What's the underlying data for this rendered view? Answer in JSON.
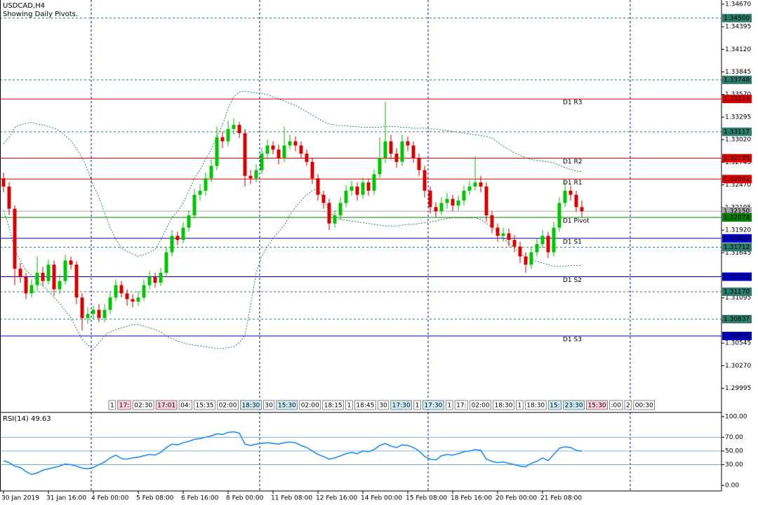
{
  "chart_data": [
    {
      "type": "candlestick",
      "title": "USDCAD,H4",
      "subtitle": "Showing Daily Pivots.",
      "categories": [
        "30 Jan 2019",
        null,
        null,
        null,
        null,
        null,
        null,
        null,
        "31 Jan 16:00",
        null,
        null,
        null,
        null,
        null,
        null,
        null,
        "4 Feb 00:00",
        null,
        null,
        null,
        null,
        null,
        null,
        null,
        "5 Feb 08:00",
        null,
        null,
        null,
        null,
        null,
        null,
        null,
        "6 Feb 16:00",
        null,
        null,
        null,
        null,
        null,
        null,
        null,
        "8 Feb 00:00",
        null,
        null,
        null,
        null,
        null,
        null,
        null,
        "11 Feb 08:00",
        null,
        null,
        null,
        null,
        null,
        null,
        null,
        "12 Feb 16:00",
        null,
        null,
        null,
        null,
        null,
        null,
        null,
        "14 Feb 00:00",
        null,
        null,
        null,
        null,
        null,
        null,
        null,
        "15 Feb 08:00",
        null,
        null,
        null,
        null,
        null,
        null,
        null,
        "18 Feb 16:00",
        null,
        null,
        null,
        null,
        null,
        null,
        null,
        "20 Feb 00:00",
        null,
        null,
        null,
        null,
        null,
        null,
        null,
        "21 Feb 08:00",
        null,
        null,
        null,
        null,
        null,
        null,
        null
      ],
      "open": [
        1.3255,
        1.3245,
        1.3218,
        1.3145,
        1.3135,
        1.3115,
        1.3125,
        1.314,
        1.313,
        1.315,
        1.312,
        1.313,
        1.3155,
        1.315,
        1.311,
        1.3085,
        1.309,
        1.3095,
        1.3085,
        1.3095,
        1.311,
        1.3125,
        1.3115,
        1.3108,
        1.3105,
        1.311,
        1.3125,
        1.3135,
        1.3128,
        1.314,
        1.3165,
        1.3185,
        1.318,
        1.3195,
        1.321,
        1.3235,
        1.324,
        1.3255,
        1.327,
        1.3305,
        1.33,
        1.3315,
        1.332,
        1.331,
        1.3258,
        1.3255,
        1.3265,
        1.3285,
        1.3295,
        1.329,
        1.328,
        1.3295,
        1.33,
        1.3295,
        1.3285,
        1.3275,
        1.3255,
        1.3235,
        1.3225,
        1.32,
        1.321,
        1.3225,
        1.324,
        1.3245,
        1.3235,
        1.325,
        1.324,
        1.326,
        1.328,
        1.33,
        1.3285,
        1.3275,
        1.33,
        1.3295,
        1.328,
        1.3265,
        1.324,
        1.322,
        1.3215,
        1.3225,
        1.323,
        1.3222,
        1.3228,
        1.324,
        1.3245,
        1.325,
        1.3245,
        1.321,
        1.3195,
        1.3185,
        1.3188,
        1.318,
        1.3172,
        1.316,
        1.315,
        1.3165,
        1.3175,
        1.3185,
        1.3165,
        1.3195,
        1.3225,
        1.324,
        1.3235,
        1.322
      ],
      "high": [
        1.3262,
        1.325,
        1.3222,
        1.3152,
        1.314,
        1.3132,
        1.316,
        1.3147,
        1.3156,
        1.3155,
        1.3138,
        1.3162,
        1.316,
        1.3154,
        1.3115,
        1.3098,
        1.31,
        1.3102,
        1.3102,
        1.3116,
        1.3132,
        1.313,
        1.312,
        1.3114,
        1.3118,
        1.3132,
        1.3142,
        1.314,
        1.3146,
        1.3172,
        1.3192,
        1.319,
        1.3202,
        1.3216,
        1.3242,
        1.3248,
        1.3262,
        1.3278,
        1.3318,
        1.3312,
        1.3325,
        1.3328,
        1.3324,
        1.3315,
        1.3265,
        1.3272,
        1.3292,
        1.3302,
        1.33,
        1.3296,
        1.3318,
        1.3308,
        1.3306,
        1.33,
        1.329,
        1.328,
        1.326,
        1.324,
        1.323,
        1.3216,
        1.3232,
        1.3247,
        1.3252,
        1.325,
        1.3256,
        1.3255,
        1.3266,
        1.3305,
        1.3348,
        1.3308,
        1.3292,
        1.3308,
        1.3306,
        1.33,
        1.3285,
        1.327,
        1.3245,
        1.3226,
        1.3232,
        1.3237,
        1.3235,
        1.3234,
        1.3246,
        1.3252,
        1.3282,
        1.3258,
        1.325,
        1.3215,
        1.32,
        1.3195,
        1.3194,
        1.3186,
        1.3178,
        1.3165,
        1.3172,
        1.3182,
        1.3192,
        1.319,
        1.3202,
        1.3232,
        1.3252,
        1.3246,
        1.324,
        1.3228
      ],
      "low": [
        1.3238,
        1.321,
        1.3125,
        1.3128,
        1.3108,
        1.311,
        1.3118,
        1.3124,
        1.3126,
        1.3112,
        1.3114,
        1.3126,
        1.3144,
        1.3102,
        1.307,
        1.3078,
        1.3084,
        1.308,
        1.308,
        1.309,
        1.3106,
        1.311,
        1.31,
        1.3098,
        1.31,
        1.3106,
        1.312,
        1.3122,
        1.3124,
        1.3136,
        1.316,
        1.3174,
        1.3176,
        1.319,
        1.3206,
        1.3228,
        1.3234,
        1.325,
        1.3265,
        1.3292,
        1.3294,
        1.3308,
        1.3304,
        1.3245,
        1.3248,
        1.325,
        1.326,
        1.3278,
        1.3284,
        1.3272,
        1.3275,
        1.329,
        1.3288,
        1.328,
        1.327,
        1.3248,
        1.3228,
        1.3218,
        1.3192,
        1.3195,
        1.3205,
        1.322,
        1.3234,
        1.3228,
        1.323,
        1.3234,
        1.3235,
        1.3255,
        1.3274,
        1.3278,
        1.3268,
        1.327,
        1.3288,
        1.3274,
        1.3258,
        1.3232,
        1.3212,
        1.3208,
        1.321,
        1.3218,
        1.3215,
        1.3216,
        1.3222,
        1.3235,
        1.324,
        1.3238,
        1.3202,
        1.3188,
        1.3178,
        1.3178,
        1.3172,
        1.3165,
        1.3152,
        1.314,
        1.3145,
        1.316,
        1.317,
        1.3158,
        1.316,
        1.319,
        1.322,
        1.3228,
        1.3214,
        1.3208
      ],
      "close": [
        1.3245,
        1.3218,
        1.3145,
        1.3135,
        1.3115,
        1.3125,
        1.314,
        1.313,
        1.315,
        1.312,
        1.313,
        1.3155,
        1.315,
        1.311,
        1.3085,
        1.309,
        1.3095,
        1.3085,
        1.3095,
        1.311,
        1.3125,
        1.3115,
        1.3108,
        1.3105,
        1.311,
        1.3125,
        1.3135,
        1.3128,
        1.314,
        1.3165,
        1.3185,
        1.318,
        1.3195,
        1.321,
        1.3235,
        1.324,
        1.3255,
        1.327,
        1.3305,
        1.33,
        1.3315,
        1.332,
        1.331,
        1.3258,
        1.3255,
        1.3265,
        1.3285,
        1.3295,
        1.329,
        1.328,
        1.3295,
        1.33,
        1.3295,
        1.3285,
        1.3275,
        1.3255,
        1.3235,
        1.3225,
        1.32,
        1.321,
        1.3225,
        1.324,
        1.3245,
        1.3235,
        1.325,
        1.324,
        1.326,
        1.328,
        1.33,
        1.3285,
        1.3275,
        1.33,
        1.3295,
        1.328,
        1.3265,
        1.324,
        1.322,
        1.3215,
        1.3225,
        1.323,
        1.3222,
        1.3228,
        1.324,
        1.3245,
        1.325,
        1.3245,
        1.321,
        1.3195,
        1.3185,
        1.3188,
        1.318,
        1.3172,
        1.316,
        1.315,
        1.3165,
        1.3175,
        1.3185,
        1.3165,
        1.3195,
        1.3225,
        1.324,
        1.3235,
        1.322,
        1.3215
      ],
      "up_color": "#00c800",
      "down_color": "#e00000",
      "upper_band": [
        1.3297,
        1.3305,
        1.3317,
        1.332,
        1.3322,
        1.3323,
        1.3321,
        1.332,
        1.3318,
        1.3316,
        1.3313,
        1.3307,
        1.3301,
        1.3291,
        1.328,
        1.3265,
        1.3246,
        1.3232,
        1.3213,
        1.3195,
        1.3181,
        1.317,
        1.3166,
        1.3163,
        1.316,
        1.3162,
        1.3165,
        1.3168,
        1.318,
        1.3194,
        1.3207,
        1.3215,
        1.3225,
        1.324,
        1.3255,
        1.3265,
        1.3278,
        1.329,
        1.3305,
        1.332,
        1.334,
        1.3354,
        1.336,
        1.3361,
        1.336,
        1.3359,
        1.3358,
        1.3357,
        1.3354,
        1.3352,
        1.3349,
        1.3346,
        1.3344,
        1.334,
        1.3336,
        1.3332,
        1.3328,
        1.3324,
        1.3321,
        1.332,
        1.3319,
        1.3319,
        1.3318,
        1.3318,
        1.3317,
        1.3317,
        1.3317,
        1.3317,
        1.3318,
        1.3318,
        1.3318,
        1.3317,
        1.3317,
        1.3316,
        1.3316,
        1.3316,
        1.3315,
        1.3315,
        1.3314,
        1.3313,
        1.3312,
        1.3311,
        1.331,
        1.3309,
        1.3308,
        1.3307,
        1.3306,
        1.3304,
        1.3299,
        1.3294,
        1.329,
        1.3286,
        1.3283,
        1.328,
        1.3278,
        1.3277,
        1.3276,
        1.3275,
        1.3274,
        1.3271,
        1.3268,
        1.3266,
        1.3264,
        1.3263
      ],
      "lower_band": [
        1.3216,
        1.3195,
        1.3168,
        1.3155,
        1.3143,
        1.3137,
        1.313,
        1.3124,
        1.3118,
        1.311,
        1.3103,
        1.3094,
        1.3085,
        1.3072,
        1.3059,
        1.3052,
        1.3047,
        1.3055,
        1.3064,
        1.3068,
        1.3071,
        1.3073,
        1.3075,
        1.3077,
        1.3077,
        1.3075,
        1.3073,
        1.3071,
        1.3068,
        1.3063,
        1.306,
        1.3057,
        1.3055,
        1.3053,
        1.3052,
        1.3051,
        1.305,
        1.3049,
        1.3048,
        1.3048,
        1.3049,
        1.305,
        1.3055,
        1.3064,
        1.31,
        1.314,
        1.316,
        1.3172,
        1.3182,
        1.319,
        1.3198,
        1.321,
        1.322,
        1.3228,
        1.3235,
        1.324,
        1.3243,
        1.323,
        1.3215,
        1.3207,
        1.3205,
        1.3204,
        1.3203,
        1.3202,
        1.3201,
        1.32,
        1.3199,
        1.3198,
        1.3197,
        1.3197,
        1.3197,
        1.3198,
        1.3199,
        1.3199,
        1.32,
        1.3201,
        1.3202,
        1.3203,
        1.3205,
        1.3206,
        1.3207,
        1.3207,
        1.3207,
        1.3207,
        1.3207,
        1.3205,
        1.32,
        1.3196,
        1.3189,
        1.3182,
        1.3176,
        1.317,
        1.3164,
        1.3159,
        1.3156,
        1.3154,
        1.3152,
        1.315,
        1.3148,
        1.3148,
        1.3148,
        1.3149,
        1.3149,
        1.3149
      ],
      "band_color": "#2e8b57",
      "ylim": [
        1.2971,
        1.3472
      ],
      "yticks": [
        {
          "value": 1.3467,
          "label": "1.34670"
        },
        {
          "value": 1.34395,
          "label": "1.34395"
        },
        {
          "value": 1.3412,
          "label": "1.34120"
        },
        {
          "value": 1.33845,
          "label": "1.33845"
        },
        {
          "value": 1.3357,
          "label": "1.33570"
        },
        {
          "value": 1.33295,
          "label": "1.33295"
        },
        {
          "value": 1.3302,
          "label": "1.33020"
        },
        {
          "value": 1.32745,
          "label": "1.32745"
        },
        {
          "value": 1.3247,
          "label": "1.32470"
        },
        {
          "value": 1.32195,
          "label": "1.32195"
        },
        {
          "value": 1.3192,
          "label": "1.31920"
        },
        {
          "value": 1.31645,
          "label": "1.31645"
        },
        {
          "value": 1.3137,
          "label": "1.31370"
        },
        {
          "value": 1.31095,
          "label": "1.31095"
        },
        {
          "value": 1.3082,
          "label": "1.30820"
        },
        {
          "value": 1.30545,
          "label": "1.30545"
        },
        {
          "value": 1.3027,
          "label": "1.30270"
        },
        {
          "value": 1.29995,
          "label": "1.29995"
        }
      ],
      "levels": [
        {
          "value": 1.345,
          "label": "1.34500",
          "color": "#2e7d6b",
          "dash": true
        },
        {
          "value": 1.33748,
          "label": "1.33748",
          "color": "#2e7d6b",
          "dash": true
        },
        {
          "value": 1.33516,
          "label": "1.33516",
          "name": "D1 R3",
          "color": "#e00000",
          "dash": false
        },
        {
          "value": 1.33117,
          "label": "1.33117",
          "color": "#2e7d6b",
          "dash": true
        },
        {
          "value": 1.32795,
          "label": "1.32795",
          "name": "D1 R2",
          "color": "#e00000",
          "dash": false
        },
        {
          "value": 1.32541,
          "label": "1.32541",
          "name": "D1 R1",
          "color": "#e00000",
          "dash": false
        },
        {
          "value": 1.3215,
          "label": "1.32150",
          "color": "#a8a8a8",
          "dash": false
        },
        {
          "value": 1.32074,
          "label": "1.32074",
          "name": "D1 Pivot",
          "color": "#008000",
          "dash": false
        },
        {
          "value": 1.3182,
          "label": "1.31820",
          "name": "D1 S1",
          "color": "#0000c8",
          "dash": false
        },
        {
          "value": 1.31712,
          "label": "1.31712",
          "color": "#2e7d6b",
          "dash": true
        },
        {
          "value": 1.31353,
          "label": "1.31353",
          "name": "D1 S2",
          "color": "#0000c8",
          "dash": false
        },
        {
          "value": 1.3117,
          "label": "1.31170",
          "color": "#2e7d6b",
          "dash": true
        },
        {
          "value": 1.30837,
          "label": "1.30837",
          "color": "#2e7d6b",
          "dash": true
        },
        {
          "value": 1.30632,
          "label": "1.30632",
          "name": "D1 S3",
          "color": "#0000c8",
          "dash": false
        }
      ],
      "sessions": [
        {
          "label": "1",
          "bg": "#ffffff"
        },
        {
          "label": "17:",
          "bg": "#ffd0dc"
        },
        {
          "label": "02:30",
          "bg": "#ffffff"
        },
        {
          "label": "17:01",
          "bg": "#ffd0dc"
        },
        {
          "label": "04:",
          "bg": "#ffffff"
        },
        {
          "label": "15:35",
          "bg": "#ffffff"
        },
        {
          "label": "02:00",
          "bg": "#ffffff"
        },
        {
          "label": "18:30",
          "bg": "#cdeef7"
        },
        {
          "label": "30",
          "bg": "#ffffff"
        },
        {
          "label": "15:30",
          "bg": "#cdeef7"
        },
        {
          "label": "02:00",
          "bg": "#ffffff"
        },
        {
          "label": "18:15",
          "bg": "#ffffff"
        },
        {
          "label": "1",
          "bg": "#ffffff"
        },
        {
          "label": "18:45",
          "bg": "#ffffff"
        },
        {
          "label": "30",
          "bg": "#ffffff"
        },
        {
          "label": "17:30",
          "bg": "#cdeef7"
        },
        {
          "label": "1",
          "bg": "#ffffff"
        },
        {
          "label": "17:30",
          "bg": "#cdeef7"
        },
        {
          "label": "1",
          "bg": "#ffffff"
        },
        {
          "label": "17:",
          "bg": "#ffffff"
        },
        {
          "label": "02:00",
          "bg": "#ffffff"
        },
        {
          "label": "18:30",
          "bg": "#ffffff"
        },
        {
          "label": "1",
          "bg": "#ffffff"
        },
        {
          "label": "18:30",
          "bg": "#ffffff"
        },
        {
          "label": "15:",
          "bg": "#cdeef7"
        },
        {
          "label": "23:30",
          "bg": "#cdeef7"
        },
        {
          "label": "15:30",
          "bg": "#ffd0dc"
        },
        {
          "label": ":00",
          "bg": "#ffffff"
        },
        {
          "label": "2",
          "bg": "#ffffff"
        },
        {
          "label": "00:30",
          "bg": "#ffffff"
        }
      ]
    },
    {
      "type": "line",
      "title": "RSI(14) 49.63",
      "values": [
        36,
        33,
        28,
        26,
        20,
        16,
        18,
        22,
        24,
        26,
        28,
        31,
        30,
        28,
        25,
        24,
        26,
        30,
        34,
        40,
        44,
        39,
        38,
        40,
        41,
        43,
        45,
        44,
        48,
        55,
        60,
        59,
        62,
        64,
        67,
        68,
        70,
        72,
        75,
        74,
        77,
        78,
        76,
        60,
        58,
        60,
        61,
        62,
        61,
        60,
        62,
        63,
        62,
        58,
        55,
        50,
        45,
        42,
        38,
        40,
        43,
        46,
        48,
        46,
        50,
        49,
        52,
        58,
        61,
        57,
        55,
        59,
        58,
        55,
        50,
        42,
        38,
        37,
        43,
        45,
        44,
        46,
        49,
        50,
        52,
        51,
        38,
        35,
        33,
        34,
        32,
        30,
        28,
        27,
        32,
        35,
        40,
        36,
        45,
        54,
        56,
        55,
        51,
        49.63
      ],
      "color": "#1e90ff",
      "ylim": [
        -8.2,
        105.1
      ],
      "yticks": [
        {
          "value": 100,
          "label": "100.00"
        },
        {
          "value": 70,
          "label": "70.00"
        },
        {
          "value": 50,
          "label": "50.00"
        },
        {
          "value": 30,
          "label": "30.00"
        },
        {
          "value": 0,
          "label": "0.00"
        }
      ],
      "levels": [
        70,
        50,
        30
      ],
      "level_color": "#5aa0e0"
    }
  ]
}
